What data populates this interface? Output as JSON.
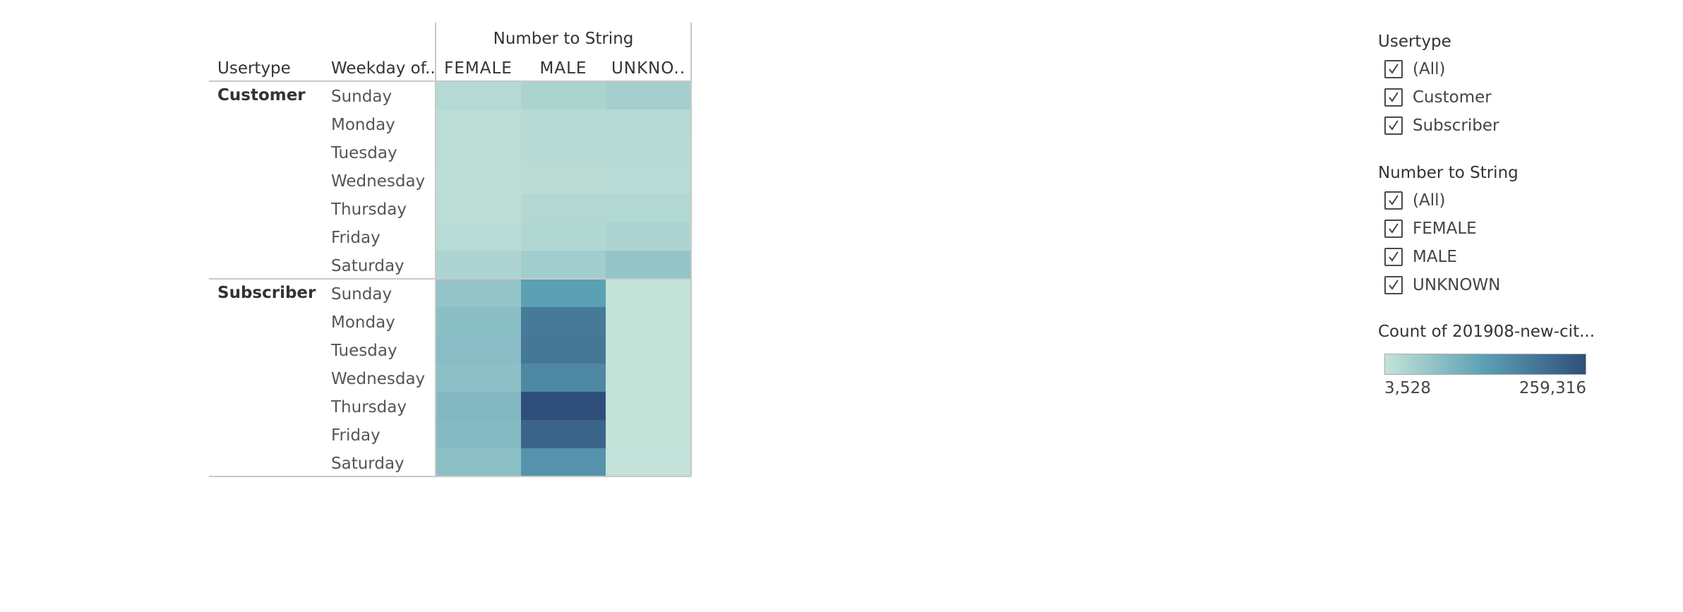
{
  "chart_data": {
    "type": "heatmap",
    "column_group_title": "Number to String",
    "row_headers": [
      "Usertype",
      "Weekday of.."
    ],
    "columns": [
      "FEMALE",
      "MALE",
      "UNKNO.."
    ],
    "groups": [
      {
        "name": "Customer",
        "rows": [
          {
            "day": "Sunday",
            "values": [
              22000,
              34000,
              42000
            ]
          },
          {
            "day": "Monday",
            "values": [
              14000,
              21000,
              22000
            ]
          },
          {
            "day": "Tuesday",
            "values": [
              14000,
              21000,
              21000
            ]
          },
          {
            "day": "Wednesday",
            "values": [
              13000,
              16000,
              19000
            ]
          },
          {
            "day": "Thursday",
            "values": [
              15000,
              24000,
              25000
            ]
          },
          {
            "day": "Friday",
            "values": [
              18000,
              27000,
              32000
            ]
          },
          {
            "day": "Saturday",
            "values": [
              31000,
              45000,
              62000
            ]
          }
        ]
      },
      {
        "name": "Subscriber",
        "rows": [
          {
            "day": "Sunday",
            "values": [
              62000,
              130000,
              3528
            ]
          },
          {
            "day": "Monday",
            "values": [
              74000,
              190000,
              3528
            ]
          },
          {
            "day": "Tuesday",
            "values": [
              76000,
              195000,
              3528
            ]
          },
          {
            "day": "Wednesday",
            "values": [
              70000,
              168000,
              3528
            ]
          },
          {
            "day": "Thursday",
            "values": [
              84000,
              259316,
              3528
            ]
          },
          {
            "day": "Friday",
            "values": [
              80000,
              225000,
              3528
            ]
          },
          {
            "day": "Saturday",
            "values": [
              72000,
              150000,
              5000
            ]
          }
        ]
      }
    ],
    "color_scale": {
      "title": "Count of 201908-new-cit...",
      "min": 3528,
      "max": 259316,
      "min_label": "3,528",
      "max_label": "259,316",
      "colors": [
        "#c4e3d9",
        "#5b9fb4",
        "#2f4f7a"
      ]
    }
  },
  "filters": [
    {
      "title": "Usertype",
      "options": [
        {
          "label": "(All)",
          "checked": true
        },
        {
          "label": "Customer",
          "checked": true
        },
        {
          "label": "Subscriber",
          "checked": true
        }
      ]
    },
    {
      "title": "Number to String",
      "options": [
        {
          "label": "(All)",
          "checked": true
        },
        {
          "label": "FEMALE",
          "checked": true
        },
        {
          "label": "MALE",
          "checked": true
        },
        {
          "label": "UNKNOWN",
          "checked": true
        }
      ]
    }
  ],
  "colors": {
    "text_dark": "#333333",
    "text_day": "#555555",
    "grid_line": "#c8c8c8"
  }
}
